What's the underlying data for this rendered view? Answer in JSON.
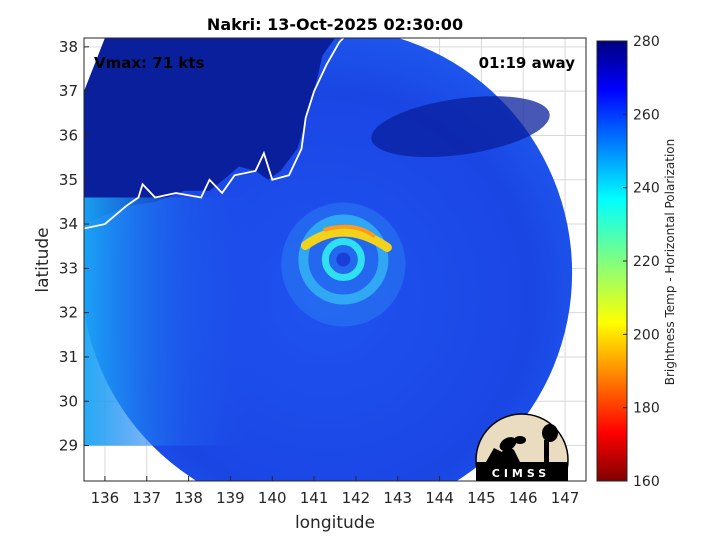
{
  "chart_data": {
    "type": "heatmap",
    "title": "Nakri: 13-Oct-2025 02:30:00",
    "xlabel": "longitude",
    "ylabel": "latitude",
    "xlim": [
      135.5,
      147.5
    ],
    "ylim": [
      28.2,
      38.2
    ],
    "xticks": [
      136,
      137,
      138,
      139,
      140,
      141,
      142,
      143,
      144,
      145,
      146,
      147
    ],
    "yticks": [
      29,
      30,
      31,
      32,
      33,
      34,
      35,
      36,
      37,
      38
    ],
    "grid": true,
    "annotations": {
      "vmax": "Vmax: 71 kts",
      "away": "01:19 away"
    },
    "storm_center": {
      "lon": 141.7,
      "lat": 33.2
    },
    "swath": {
      "center_lon": 141.3,
      "center_lat": 32.9,
      "radius_deg": 5.7
    },
    "colorbar": {
      "label": "Brightness Temp - Horizontal Polarization",
      "range": [
        160,
        280
      ],
      "ticks": [
        160,
        180,
        200,
        220,
        240,
        260,
        280
      ],
      "colormap": "jet"
    },
    "logo_text": "CIMSS"
  },
  "colors": {
    "background": "#ffffff",
    "grid": "#d9d9d9",
    "coast": "#ffffff",
    "ocean_warm": "#1d3fe6",
    "land_cold": "#0a1f9c",
    "eyewall": "#f2d21a"
  }
}
